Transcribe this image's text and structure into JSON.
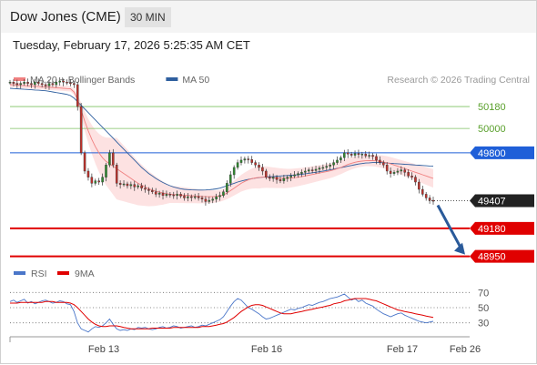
{
  "header": {
    "title": "Dow Jones (CME)",
    "interval": "30 MIN"
  },
  "timestamp": "Tuesday, February 17, 2026 5:25:35 AM CET",
  "legend": {
    "main": [
      {
        "name": "MA 20 + Bollinger Bands",
        "color": "#f08080"
      },
      {
        "name": "MA 50",
        "color": "#2f5f9f"
      }
    ],
    "rsi": [
      {
        "name": "RSI",
        "color": "#4a76c9"
      },
      {
        "name": "9MA",
        "color": "#e00000"
      }
    ]
  },
  "watermark": "Research © 2026 Trading Central",
  "chart_data": {
    "type": "candlestick",
    "x_labels": [
      "Feb 13",
      "Feb 16",
      "Feb 17",
      "Feb 26"
    ],
    "price_axis_ylim": [
      48880,
      50300
    ],
    "levels": [
      {
        "label": "50180",
        "value": 50180,
        "style": "green-line"
      },
      {
        "label": "50000",
        "value": 50000,
        "style": "green-line"
      },
      {
        "label": "49800",
        "value": 49800,
        "style": "blue-tag"
      },
      {
        "label": "49407",
        "value": 49407,
        "style": "current-price"
      },
      {
        "label": "49180",
        "value": 49180,
        "style": "red-tag"
      },
      {
        "label": "48950",
        "value": 48950,
        "style": "red-tag"
      }
    ],
    "close_series": [
      50380,
      50370,
      50360,
      50370,
      50380,
      50370,
      50360,
      50380,
      50370,
      50360,
      50350,
      50370,
      50360,
      50380,
      50390,
      50380,
      50375,
      50370,
      50360,
      50180,
      49800,
      49650,
      49600,
      49550,
      49570,
      49560,
      49600,
      49700,
      49800,
      49700,
      49550,
      49540,
      49545,
      49530,
      49540,
      49520,
      49530,
      49510,
      49500,
      49490,
      49480,
      49460,
      49470,
      49450,
      49460,
      49455,
      49450,
      49460,
      49445,
      49430,
      49440,
      49435,
      49440,
      49430,
      49420,
      49400,
      49410,
      49420,
      49440,
      49450,
      49480,
      49550,
      49620,
      49680,
      49720,
      49740,
      49750,
      49745,
      49720,
      49700,
      49680,
      49650,
      49600,
      49590,
      49600,
      49580,
      49570,
      49590,
      49600,
      49610,
      49620,
      49630,
      49640,
      49650,
      49660,
      49655,
      49665,
      49675,
      49680,
      49690,
      49700,
      49720,
      49740,
      49760,
      49800,
      49790,
      49780,
      49795,
      49785,
      49790,
      49775,
      49780,
      49770,
      49740,
      49720,
      49700,
      49650,
      49630,
      49640,
      49650,
      49660,
      49640,
      49610,
      49600,
      49560,
      49500,
      49460,
      49430,
      49410,
      49407
    ],
    "ma20": [
      50360,
      50358,
      50356,
      50354,
      50352,
      50350,
      50348,
      50346,
      50344,
      50342,
      50340,
      50338,
      50336,
      50334,
      50332,
      50330,
      50328,
      50326,
      50300,
      50240,
      50150,
      50060,
      49980,
      49910,
      49850,
      49800,
      49760,
      49730,
      49710,
      49690,
      49670,
      49650,
      49630,
      49610,
      49590,
      49570,
      49550,
      49535,
      49520,
      49505,
      49495,
      49485,
      49478,
      49470,
      49465,
      49460,
      49458,
      49456,
      49454,
      49452,
      49450,
      49448,
      49446,
      49444,
      49442,
      49440,
      49440,
      49440,
      49442,
      49446,
      49455,
      49470,
      49490,
      49510,
      49530,
      49550,
      49565,
      49578,
      49588,
      49594,
      49598,
      49600,
      49600,
      49598,
      49596,
      49594,
      49592,
      49590,
      49590,
      49592,
      49596,
      49600,
      49605,
      49610,
      49616,
      49622,
      49628,
      49634,
      49640,
      49646,
      49652,
      49660,
      49670,
      49680,
      49692,
      49704,
      49714,
      49722,
      49728,
      49732,
      49735,
      49736,
      49736,
      49734,
      49730,
      49725,
      49718,
      49710,
      49700,
      49690,
      49680,
      49670,
      49660,
      49650,
      49640,
      49630,
      49620,
      49610,
      49600,
      49590
    ],
    "ma50": [
      50330,
      50328,
      50326,
      50324,
      50322,
      50320,
      50318,
      50316,
      50314,
      50312,
      50310,
      50305,
      50300,
      50295,
      50290,
      50285,
      50280,
      50270,
      50250,
      50220,
      50190,
      50160,
      50130,
      50100,
      50070,
      50040,
      50010,
      49980,
      49950,
      49920,
      49890,
      49860,
      49830,
      49800,
      49770,
      49740,
      49710,
      49680,
      49655,
      49630,
      49610,
      49590,
      49572,
      49556,
      49542,
      49530,
      49520,
      49512,
      49505,
      49500,
      49498,
      49496,
      49495,
      49494,
      49494,
      49495,
      49497,
      49500,
      49504,
      49510,
      49520,
      49530,
      49540,
      49550,
      49560,
      49568,
      49576,
      49582,
      49588,
      49592,
      49596,
      49600,
      49602,
      49604,
      49606,
      49608,
      49610,
      49612,
      49614,
      49616,
      49618,
      49620,
      49624,
      49628,
      49632,
      49636,
      49640,
      49645,
      49650,
      49655,
      49660,
      49666,
      49672,
      49678,
      49684,
      49690,
      49696,
      49702,
      49708,
      49712,
      49716,
      49718,
      49720,
      49720,
      49720,
      49718,
      49716,
      49714,
      49712,
      49710,
      49708,
      49706,
      49704,
      49702,
      49700,
      49698,
      49696,
      49694,
      49692,
      49690
    ],
    "rsi_axis": {
      "ylim": [
        20,
        80
      ],
      "ticks": [
        70,
        50,
        30
      ]
    },
    "rsi": [
      58,
      60,
      57,
      59,
      61,
      56,
      58,
      55,
      57,
      59,
      60,
      58,
      56,
      57,
      59,
      58,
      55,
      54,
      45,
      30,
      22,
      20,
      18,
      22,
      25,
      24,
      26,
      30,
      35,
      28,
      22,
      20,
      21,
      20,
      22,
      21,
      24,
      23,
      24,
      22,
      21,
      22,
      24,
      25,
      23,
      24,
      26,
      25,
      23,
      24,
      25,
      26,
      24,
      25,
      27,
      26,
      28,
      30,
      32,
      34,
      38,
      45,
      52,
      58,
      62,
      60,
      55,
      50,
      48,
      45,
      42,
      38,
      35,
      36,
      38,
      40,
      42,
      44,
      46,
      48,
      47,
      49,
      50,
      52,
      54,
      53,
      55,
      57,
      58,
      60,
      62,
      63,
      64,
      66,
      68,
      64,
      60,
      62,
      58,
      60,
      56,
      54,
      52,
      48,
      45,
      42,
      40,
      38,
      40,
      42,
      43,
      40,
      38,
      36,
      34,
      32,
      31,
      30,
      31,
      32
    ],
    "rsi_ma": [
      56,
      56,
      56,
      57,
      57,
      57,
      57,
      57,
      57,
      57,
      58,
      58,
      58,
      57,
      57,
      57,
      57,
      56,
      54,
      50,
      45,
      40,
      35,
      31,
      28,
      26,
      25,
      25,
      26,
      26,
      26,
      25,
      24,
      23,
      22,
      22,
      22,
      22,
      22,
      22,
      23,
      23,
      23,
      23,
      23,
      23,
      24,
      24,
      24,
      24,
      24,
      24,
      24,
      24,
      25,
      25,
      25,
      26,
      27,
      28,
      29,
      31,
      34,
      37,
      41,
      45,
      48,
      51,
      53,
      54,
      54,
      53,
      51,
      49,
      47,
      45,
      43,
      42,
      42,
      42,
      43,
      44,
      45,
      46,
      47,
      48,
      49,
      50,
      51,
      52,
      53,
      55,
      56,
      57,
      59,
      60,
      61,
      62,
      62,
      62,
      62,
      61,
      60,
      59,
      57,
      55,
      53,
      51,
      49,
      47,
      46,
      45,
      44,
      43,
      42,
      41,
      40,
      39,
      38,
      37
    ]
  }
}
